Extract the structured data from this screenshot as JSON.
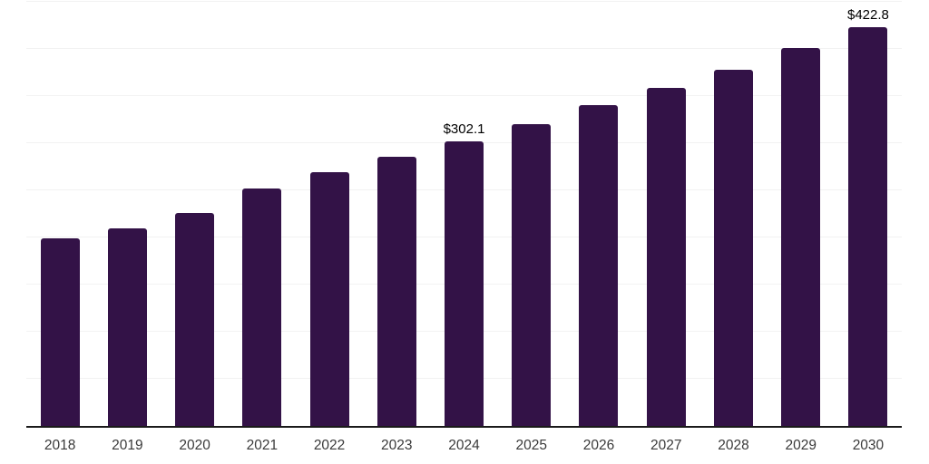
{
  "chart": {
    "background": "#ffffff",
    "bar_color": "#331247",
    "axis_line_color": "#1a1a1a",
    "gridline_color": "#f2f2f2",
    "tick_label_color": "#3a3a3a",
    "data_label_color": "#000000"
  },
  "chart_data": {
    "type": "bar",
    "title": "",
    "xlabel": "",
    "ylabel": "",
    "categories": [
      "2018",
      "2019",
      "2020",
      "2021",
      "2022",
      "2023",
      "2024",
      "2025",
      "2026",
      "2027",
      "2028",
      "2029",
      "2030"
    ],
    "values": [
      199,
      210,
      226,
      251.5,
      269,
      285.5,
      302.1,
      320,
      340,
      359,
      377.5,
      400.5,
      422.8
    ],
    "data_labels": [
      "",
      "",
      "",
      "",
      "",
      "",
      "$302.1",
      "",
      "",
      "",
      "",
      "",
      "$422.8"
    ],
    "value_prefix": "$",
    "ylim": [
      0,
      450
    ],
    "gridline_step": 50,
    "grid": "horizontal",
    "y_axis_tick_labels_visible": false,
    "legend": "none"
  }
}
